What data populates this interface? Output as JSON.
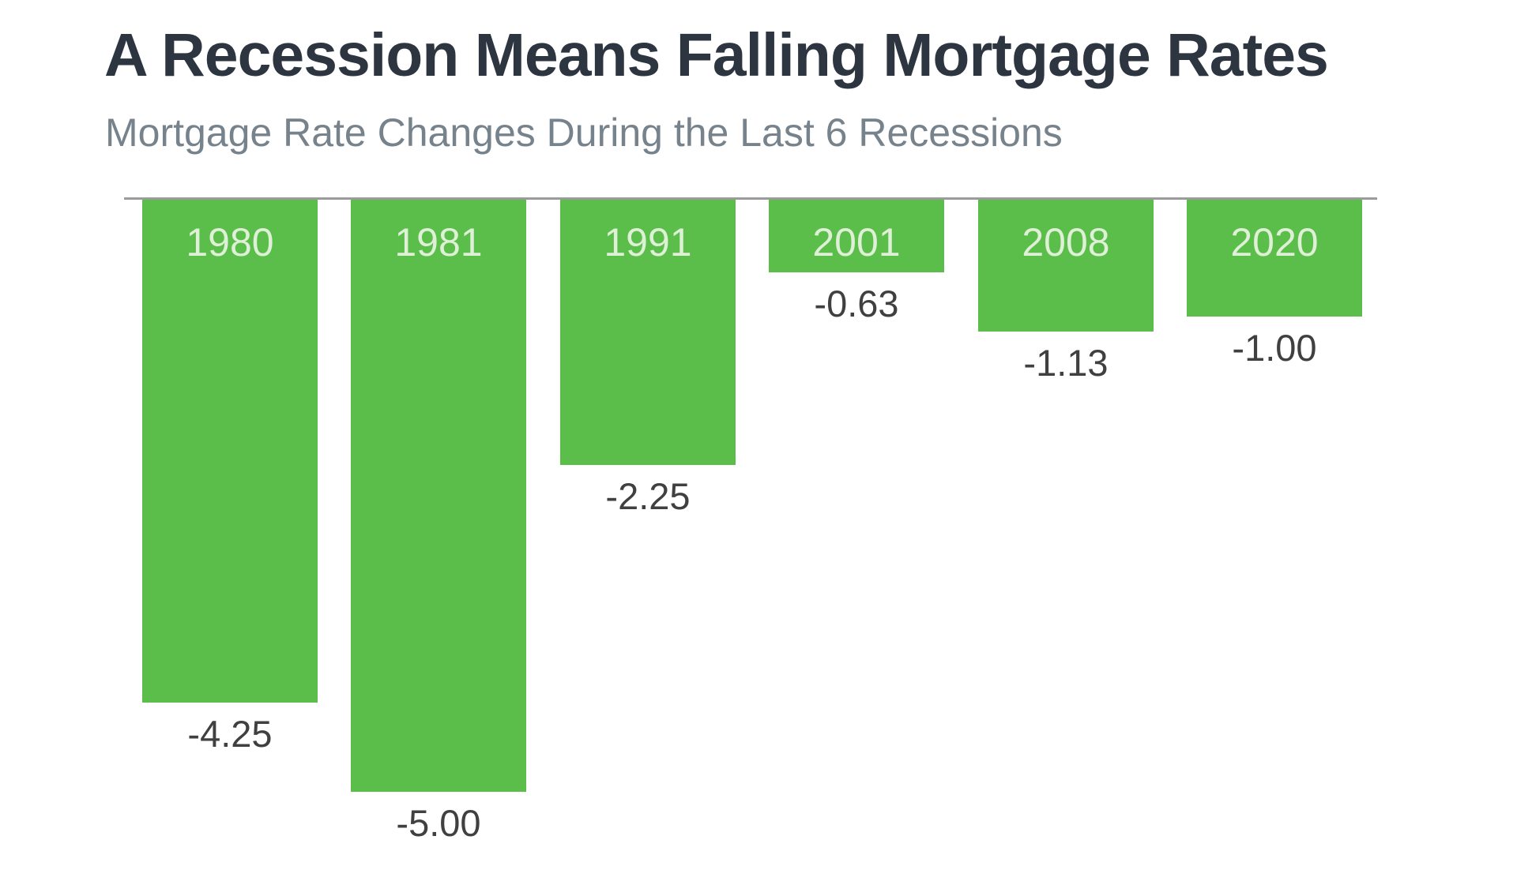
{
  "header": {
    "title": "A Recession Means Falling Mortgage Rates",
    "subtitle": "Mortgage Rate Changes During the Last 6 Recessions"
  },
  "chart_data": {
    "type": "bar",
    "orientation": "vertical",
    "title": "A Recession Means Falling Mortgage Rates",
    "subtitle": "Mortgage Rate Changes During the Last 6 Recessions",
    "categories": [
      "1980",
      "1981",
      "1991",
      "2001",
      "2008",
      "2020"
    ],
    "values": [
      -4.25,
      -5.0,
      -2.25,
      -0.63,
      -1.13,
      -1.0
    ],
    "value_labels": [
      "-4.25",
      "-5.00",
      "-2.25",
      "-0.63",
      "-1.13",
      "-1.00"
    ],
    "baseline": 0,
    "ylim": [
      -5.5,
      0
    ],
    "grid": false,
    "legend": false,
    "bars_hang_below_axis": true,
    "colors": {
      "bar_fill": "#5cbe4a",
      "year_label": "#def0d6",
      "value_label": "#404040",
      "axis_line": "#9b9b9b",
      "title_text": "#2d3540",
      "subtitle_text": "#76828c",
      "background": "#ffffff"
    }
  }
}
